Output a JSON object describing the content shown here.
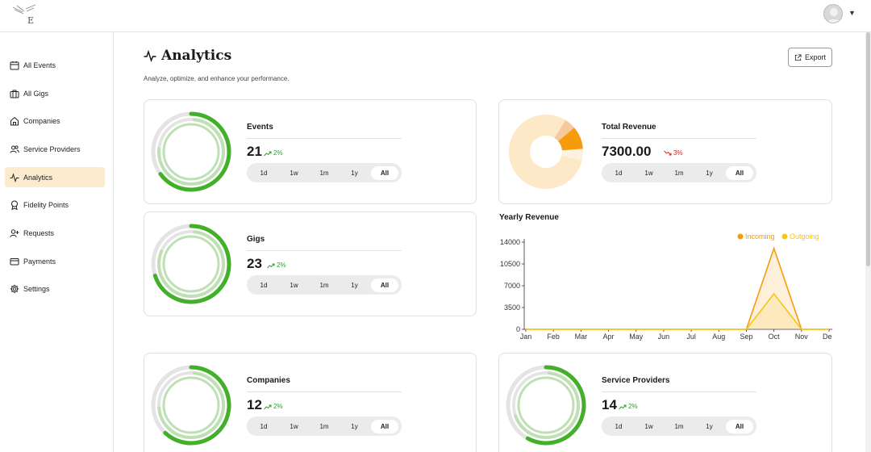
{
  "app": {
    "logo_text": "E"
  },
  "sidebar": {
    "items": [
      {
        "label": "All Events",
        "icon": "calendar-icon",
        "active": false
      },
      {
        "label": "All Gigs",
        "icon": "briefcase-icon",
        "active": false
      },
      {
        "label": "Companies",
        "icon": "home-icon",
        "active": false
      },
      {
        "label": "Service Providers",
        "icon": "users-icon",
        "active": false
      },
      {
        "label": "Analytics",
        "icon": "activity-icon",
        "active": true
      },
      {
        "label": "Fidelity Points",
        "icon": "award-icon",
        "active": false
      },
      {
        "label": "Requests",
        "icon": "user-plus-icon",
        "active": false
      },
      {
        "label": "Payments",
        "icon": "credit-card-icon",
        "active": false
      },
      {
        "label": "Settings",
        "icon": "gear-icon",
        "active": false
      }
    ]
  },
  "header": {
    "title": "Analytics",
    "subtitle": "Analyze, optimize, and enhance your performance.",
    "export_label": "Export"
  },
  "periods": [
    "1d",
    "1w",
    "1m",
    "1y",
    "All"
  ],
  "selected_period": "All",
  "cards": {
    "events": {
      "title": "Events",
      "value": "21",
      "change": "2%",
      "trend": "up",
      "progress": 0.65
    },
    "gigs": {
      "title": "Gigs",
      "value": "23",
      "change": "2%",
      "trend": "up",
      "progress": 0.7
    },
    "revenue": {
      "title": "Total Revenue",
      "value": "7300.00",
      "change": "3%",
      "trend": "down"
    },
    "companies": {
      "title": "Companies",
      "value": "12",
      "change": "2%",
      "trend": "up",
      "progress": 0.62
    },
    "providers": {
      "title": "Service Providers",
      "value": "14",
      "change": "2%",
      "trend": "up",
      "progress": 0.58
    }
  },
  "colors": {
    "accent": "#fdebcd",
    "ring_green": "#43b02a",
    "ring_light": "#bfe0b4",
    "ring_gray": "#e4e4e4",
    "incoming": "#f59b0c",
    "outgoing": "#f5c518",
    "pie_bg": "#fde8c8",
    "up": "#2e9b2e",
    "down": "#dd2222"
  },
  "pie": {
    "slices": [
      {
        "value": 0.05,
        "color": "#f5c99a"
      },
      {
        "value": 0.1,
        "color": "#f59b0c"
      },
      {
        "value": 0.05,
        "color": "#fdf1df"
      },
      {
        "value": 0.8,
        "color": "#fde8c8"
      }
    ]
  },
  "chart_data": {
    "type": "area",
    "title": "Yearly Revenue",
    "categories": [
      "Jan",
      "Feb",
      "Mar",
      "Apr",
      "May",
      "Jun",
      "Jul",
      "Aug",
      "Sep",
      "Oct",
      "Nov",
      "Dec"
    ],
    "series": [
      {
        "name": "Incoming",
        "color": "#f59b0c",
        "values": [
          0,
          0,
          0,
          0,
          0,
          0,
          0,
          0,
          0,
          13000,
          0,
          0
        ]
      },
      {
        "name": "Outgoing",
        "color": "#f5c518",
        "values": [
          0,
          0,
          0,
          0,
          0,
          0,
          0,
          0,
          0,
          5700,
          0,
          0
        ]
      }
    ],
    "yticks": [
      0,
      3500,
      7000,
      10500,
      14000
    ],
    "ylim": [
      0,
      14000
    ],
    "legend_position": "top-right",
    "grid": false
  }
}
